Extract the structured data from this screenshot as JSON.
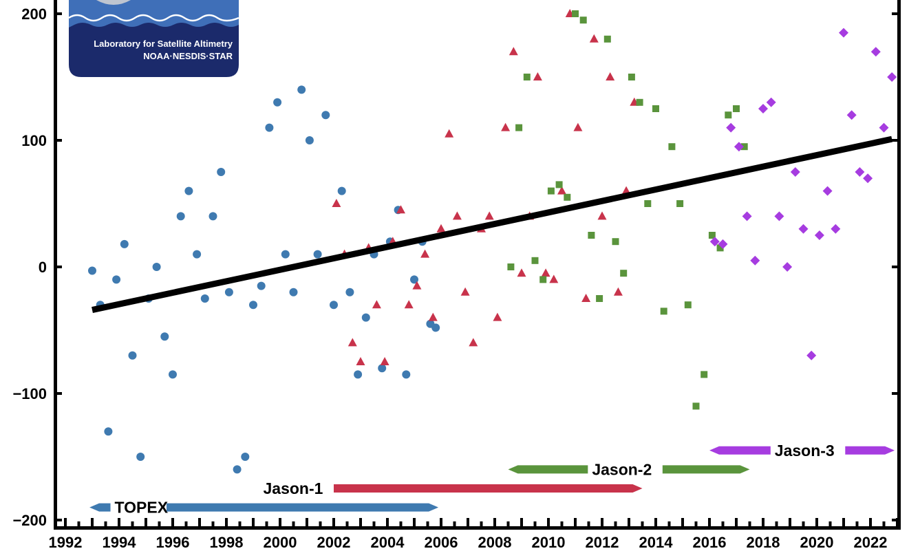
{
  "chart_data": {
    "type": "scatter",
    "title": "",
    "xlabel": "",
    "ylabel": "",
    "xlim": [
      1992,
      2023
    ],
    "ylim": [
      -200,
      200
    ],
    "grid": false,
    "x_ticks": [
      "1992",
      "1994",
      "1996",
      "1998",
      "2000",
      "2002",
      "2004",
      "2006",
      "2008",
      "2010",
      "2012",
      "2014",
      "2016",
      "2018",
      "2020",
      "2022"
    ],
    "y_ticks": [
      "200",
      "100",
      "0",
      "−100",
      "−200"
    ],
    "trend": {
      "x": [
        1993.0,
        2022.8
      ],
      "y": [
        -34,
        101
      ],
      "color": "#000000"
    },
    "series": [
      {
        "name": "TOPEX",
        "marker": "circle",
        "color": "#3F7AB0",
        "x": [
          1993.0,
          1993.3,
          1993.6,
          1993.9,
          1994.2,
          1994.5,
          1994.8,
          1995.1,
          1995.4,
          1995.7,
          1996.0,
          1996.3,
          1996.6,
          1996.9,
          1997.2,
          1997.5,
          1997.8,
          1998.1,
          1998.4,
          1998.7,
          1999.0,
          1999.3,
          1999.6,
          1999.9,
          2000.2,
          2000.5,
          2000.8,
          2001.1,
          2001.4,
          2001.7,
          2002.0,
          2002.3,
          2002.6,
          2002.9,
          2003.2,
          2003.5,
          2003.8,
          2004.1,
          2004.4,
          2004.7,
          2005.0,
          2005.3,
          2005.6,
          2005.8
        ],
        "y": [
          -3,
          -30,
          -130,
          -10,
          18,
          -70,
          -150,
          -25,
          0,
          -55,
          -85,
          40,
          60,
          10,
          -25,
          40,
          75,
          -20,
          -160,
          -150,
          -30,
          -15,
          110,
          130,
          10,
          -20,
          140,
          100,
          10,
          120,
          -30,
          60,
          -20,
          -85,
          -40,
          10,
          -80,
          20,
          45,
          -85,
          -10,
          20,
          -45,
          -48
        ]
      },
      {
        "name": "Jason-1",
        "marker": "triangle",
        "color": "#C8334B",
        "x": [
          2002.1,
          2002.4,
          2002.7,
          2003.0,
          2003.3,
          2003.6,
          2003.9,
          2004.2,
          2004.5,
          2004.8,
          2005.1,
          2005.4,
          2005.7,
          2006.0,
          2006.3,
          2006.6,
          2006.9,
          2007.2,
          2007.5,
          2007.8,
          2008.1,
          2008.4,
          2008.7,
          2009.0,
          2009.3,
          2009.6,
          2009.9,
          2010.2,
          2010.5,
          2010.8,
          2011.1,
          2011.4,
          2011.7,
          2012.0,
          2012.3,
          2012.6,
          2012.9,
          2013.2
        ],
        "y": [
          50,
          10,
          -60,
          -75,
          15,
          -30,
          -75,
          20,
          45,
          -30,
          -15,
          10,
          -40,
          30,
          105,
          40,
          -20,
          -60,
          30,
          40,
          -40,
          110,
          170,
          -5,
          40,
          150,
          -5,
          -10,
          60,
          200,
          110,
          -25,
          180,
          40,
          150,
          -20,
          60,
          130
        ]
      },
      {
        "name": "Jason-2",
        "marker": "square",
        "color": "#5A943C",
        "x": [
          2008.6,
          2008.9,
          2009.2,
          2009.5,
          2009.8,
          2010.1,
          2010.4,
          2010.7,
          2011.0,
          2011.3,
          2011.6,
          2011.9,
          2012.2,
          2012.5,
          2012.8,
          2013.1,
          2013.4,
          2013.7,
          2014.0,
          2014.3,
          2014.6,
          2014.9,
          2015.2,
          2015.5,
          2015.8,
          2016.1,
          2016.4,
          2016.7,
          2017.0,
          2017.3
        ],
        "y": [
          0,
          110,
          150,
          5,
          -10,
          60,
          65,
          55,
          200,
          195,
          25,
          -25,
          180,
          20,
          -5,
          150,
          130,
          50,
          125,
          -35,
          95,
          50,
          -30,
          -110,
          -85,
          25,
          15,
          120,
          125,
          95
        ]
      },
      {
        "name": "Jason-3",
        "marker": "diamond",
        "color": "#A63CE0",
        "x": [
          2016.2,
          2016.5,
          2016.8,
          2017.1,
          2017.4,
          2017.7,
          2018.0,
          2018.3,
          2018.6,
          2018.9,
          2019.2,
          2019.5,
          2019.8,
          2020.1,
          2020.4,
          2020.7,
          2021.0,
          2021.3,
          2021.6,
          2021.9,
          2022.2,
          2022.5,
          2022.8
        ],
        "y": [
          20,
          18,
          110,
          95,
          40,
          5,
          125,
          130,
          40,
          0,
          75,
          30,
          -70,
          25,
          60,
          30,
          185,
          120,
          75,
          70,
          170,
          110,
          150
        ]
      }
    ],
    "missions": [
      {
        "name": "TOPEX",
        "start": 1992.9,
        "end": 2005.9,
        "color": "#3F7AB0",
        "y": -190
      },
      {
        "name": "Jason-1",
        "start": 2002.0,
        "end": 2013.5,
        "color": "#C8334B",
        "y": -175
      },
      {
        "name": "Jason-2",
        "start": 2008.5,
        "end": 2017.5,
        "color": "#5A943C",
        "y": -160
      },
      {
        "name": "Jason-3",
        "start": 2016.0,
        "end": 2022.9,
        "color": "#A63CE0",
        "y": -145
      }
    ]
  },
  "logo": {
    "line1": "Laboratory for Satellite Altimetry",
    "line2": "NOAA·NESDIS·STAR",
    "bg_color": "#1B2A6B",
    "wave_color": "#3F6FB8"
  }
}
